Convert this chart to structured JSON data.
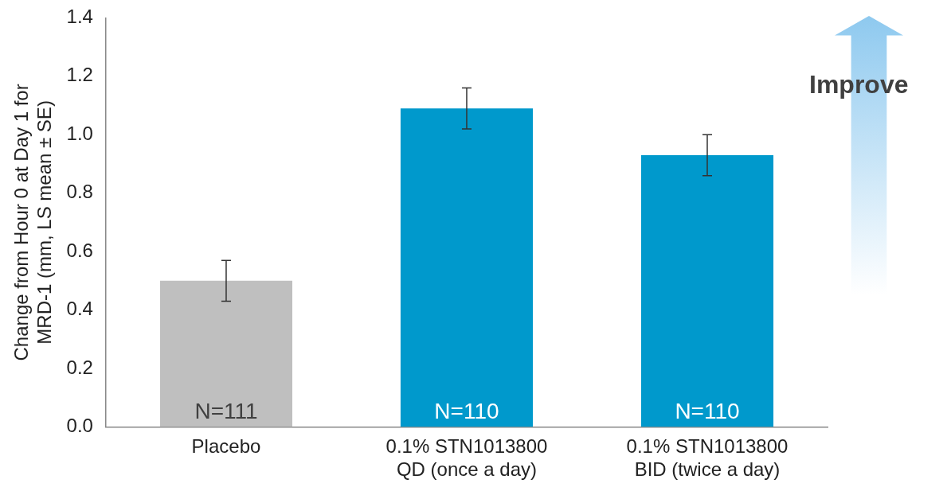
{
  "chart_data": {
    "type": "bar",
    "ylabel": "Change from Hour 0 at Day 1 for MRD-1 (mm, LS mean ± SE)",
    "categories": [
      "Placebo",
      "0.1% STN1013800\nQD (once a day)",
      "0.1% STN1013800\nBID (twice a day)"
    ],
    "values": [
      0.5,
      1.09,
      0.93
    ],
    "colors": [
      "#bfbfbf",
      "#0099cc",
      "#0099cc"
    ],
    "errors": [
      0.07,
      0.07,
      0.07
    ],
    "ylim": [
      0,
      1.4
    ],
    "yticks": [
      {
        "value": 0,
        "label": "0.0"
      },
      0.2,
      0.4,
      0.6,
      0.8,
      {
        "value": 1,
        "label": "1.0"
      },
      1.2,
      1.4
    ],
    "grid": false,
    "legend": false,
    "annotations": [
      {
        "text": "N=111",
        "x": "Placebo",
        "y": 0
      },
      {
        "text": "N=110",
        "x": "0.1% STN1013800\nQD (once a day)",
        "y": 0
      },
      {
        "text": "N=110",
        "x": "0.1% STN1013800\nBID (twice a day)",
        "y": 0
      },
      "Improve"
    ]
  }
}
